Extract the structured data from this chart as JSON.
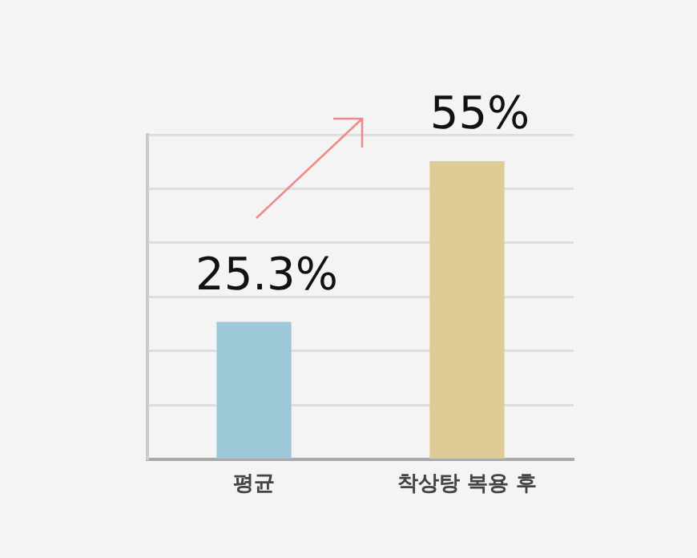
{
  "chart_data": {
    "type": "bar",
    "categories": [
      "평균",
      "착상탕 복용 후"
    ],
    "values": [
      25.3,
      55
    ],
    "colors": [
      "#9dc8d8",
      "#dfcb95"
    ],
    "value_labels": [
      "25.3%",
      "55%"
    ],
    "ylim": [
      0,
      60
    ],
    "yticks": [
      {
        "value": 0,
        "label": null
      },
      {
        "value": 10,
        "label": null
      },
      {
        "value": 20,
        "label": null
      },
      {
        "value": 30,
        "label": null
      },
      {
        "value": 40,
        "label": null
      },
      {
        "value": 50,
        "label": null
      },
      {
        "value": 60,
        "label": null
      }
    ],
    "grid": "y",
    "tick_labels": "x",
    "legend": false
  }
}
